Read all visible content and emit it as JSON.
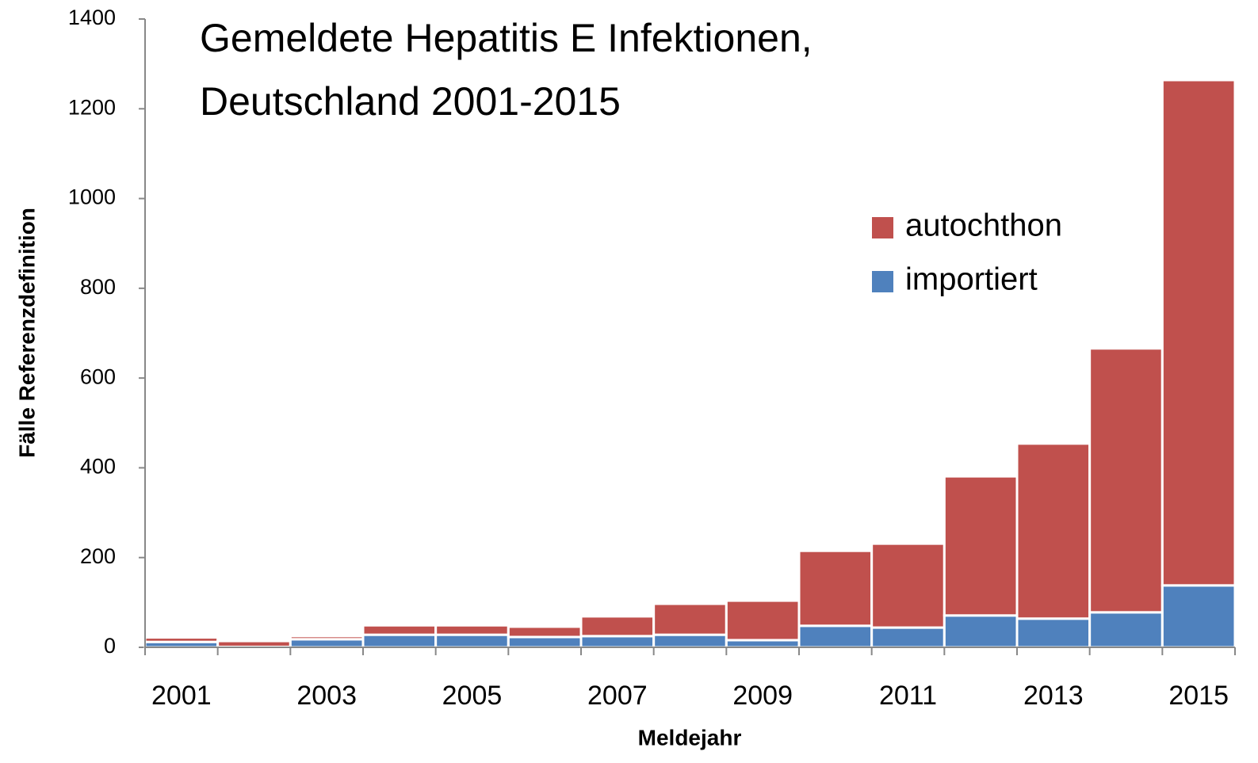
{
  "chart_data": {
    "type": "stacked_bar",
    "title": [
      "Gemeldete Hepatitis E Infektionen,",
      "Deutschland 2001-2015"
    ],
    "x_label": "Meldejahr",
    "y_label": "Fälle Referenzdefinition",
    "categories": [
      "2001",
      null,
      "2003",
      null,
      "2005",
      null,
      "2007",
      null,
      "2009",
      null,
      "2011",
      null,
      "2013",
      null,
      "2015"
    ],
    "series": [
      {
        "name": "importiert",
        "color": "#4f81bd",
        "values": [
          12,
          1,
          18,
          28,
          28,
          23,
          25,
          28,
          16,
          48,
          44,
          71,
          64,
          78,
          138
        ]
      },
      {
        "name": "autochthon",
        "color": "#c0504d",
        "values": [
          10,
          13,
          7,
          21,
          21,
          23,
          44,
          69,
          88,
          167,
          187,
          310,
          390,
          588,
          1126
        ]
      }
    ],
    "ylim": [
      0,
      1400
    ],
    "yticks": [
      0,
      200,
      400,
      600,
      800,
      1000,
      1200,
      1400
    ],
    "legend": "upper-right"
  }
}
